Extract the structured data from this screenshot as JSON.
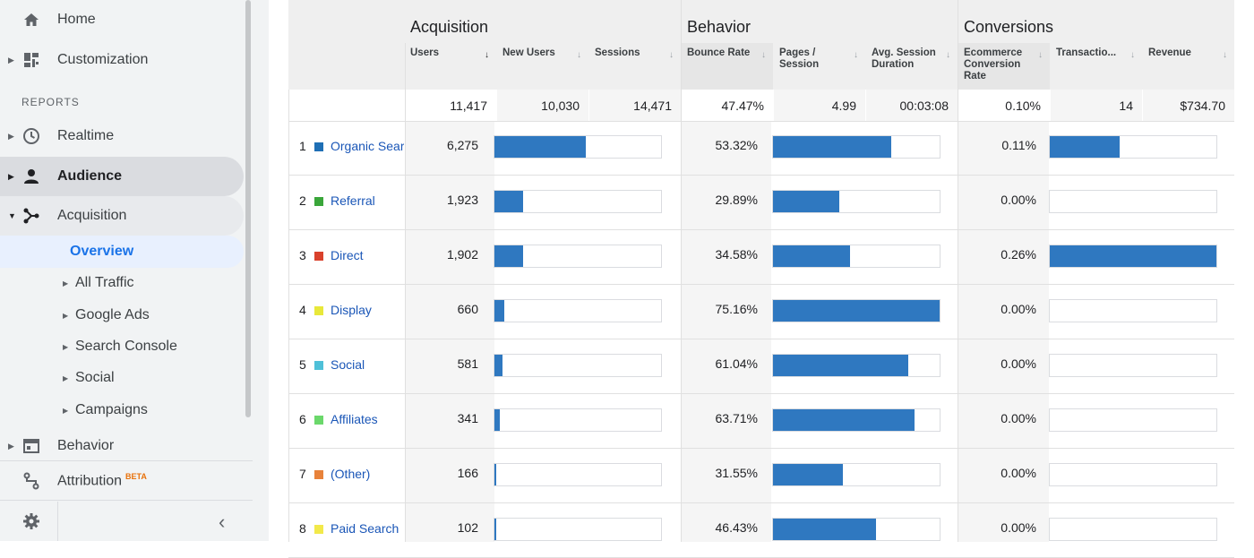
{
  "sidebar": {
    "home_label": "Home",
    "customization_label": "Customization",
    "reports_heading": "REPORTS",
    "realtime_label": "Realtime",
    "audience_label": "Audience",
    "acquisition_label": "Acquisition",
    "overview_label": "Overview",
    "sub_items": [
      {
        "label": "All Traffic"
      },
      {
        "label": "Google Ads"
      },
      {
        "label": "Search Console"
      },
      {
        "label": "Social"
      },
      {
        "label": "Campaigns"
      }
    ],
    "behavior_label": "Behavior",
    "attribution_label": "Attribution",
    "attribution_badge": "BETA",
    "collapse_glyph": "‹"
  },
  "table": {
    "groups": {
      "acquisition": "Acquisition",
      "behavior": "Behavior",
      "conversions": "Conversions"
    },
    "columns": [
      {
        "label": "Users",
        "sorted": true
      },
      {
        "label": "New Users"
      },
      {
        "label": "Sessions"
      },
      {
        "label": "Bounce Rate"
      },
      {
        "label": "Pages / Session"
      },
      {
        "label": "Avg. Session Duration"
      },
      {
        "label": "Ecommerce Conversion Rate"
      },
      {
        "label": "Transactio..."
      },
      {
        "label": "Revenue"
      }
    ],
    "totals": {
      "users": "11,417",
      "new_users": "10,030",
      "sessions": "14,471",
      "bounce_rate": "47.47%",
      "pages_session": "4.99",
      "avg_duration": "00:03:08",
      "conv_rate": "0.10%",
      "transactions": "14",
      "revenue": "$734.70"
    },
    "rows": [
      {
        "num": "1",
        "channel": "Organic Search",
        "color": "#1f6fb5",
        "users": "6,275",
        "users_frac": 0.55,
        "bounce": "53.32%",
        "bounce_frac": 0.71,
        "conv": "0.11%",
        "conv_frac": 0.42
      },
      {
        "num": "2",
        "channel": "Referral",
        "color": "#3aa63a",
        "users": "1,923",
        "users_frac": 0.17,
        "bounce": "29.89%",
        "bounce_frac": 0.4,
        "conv": "0.00%",
        "conv_frac": 0
      },
      {
        "num": "3",
        "channel": "Direct",
        "color": "#d9412c",
        "users": "1,902",
        "users_frac": 0.17,
        "bounce": "34.58%",
        "bounce_frac": 0.46,
        "conv": "0.26%",
        "conv_frac": 1.0
      },
      {
        "num": "4",
        "channel": "Display",
        "color": "#e8e83a",
        "users": "660",
        "users_frac": 0.06,
        "bounce": "75.16%",
        "bounce_frac": 1.0,
        "conv": "0.00%",
        "conv_frac": 0
      },
      {
        "num": "5",
        "channel": "Social",
        "color": "#4fc0d8",
        "users": "581",
        "users_frac": 0.05,
        "bounce": "61.04%",
        "bounce_frac": 0.81,
        "conv": "0.00%",
        "conv_frac": 0
      },
      {
        "num": "6",
        "channel": "Affiliates",
        "color": "#6bd86b",
        "users": "341",
        "users_frac": 0.03,
        "bounce": "63.71%",
        "bounce_frac": 0.85,
        "conv": "0.00%",
        "conv_frac": 0
      },
      {
        "num": "7",
        "channel": "(Other)",
        "color": "#e8823a",
        "users": "166",
        "users_frac": 0.01,
        "bounce": "31.55%",
        "bounce_frac": 0.42,
        "conv": "0.00%",
        "conv_frac": 0
      },
      {
        "num": "8",
        "channel": "Paid Search",
        "color": "#f2e94a",
        "users": "102",
        "users_frac": 0.005,
        "bounce": "46.43%",
        "bounce_frac": 0.62,
        "conv": "0.00%",
        "conv_frac": 0
      }
    ]
  },
  "colors": {
    "bar": "#2f78c0",
    "link": "#1a56b7",
    "accent": "#1a73e8"
  }
}
